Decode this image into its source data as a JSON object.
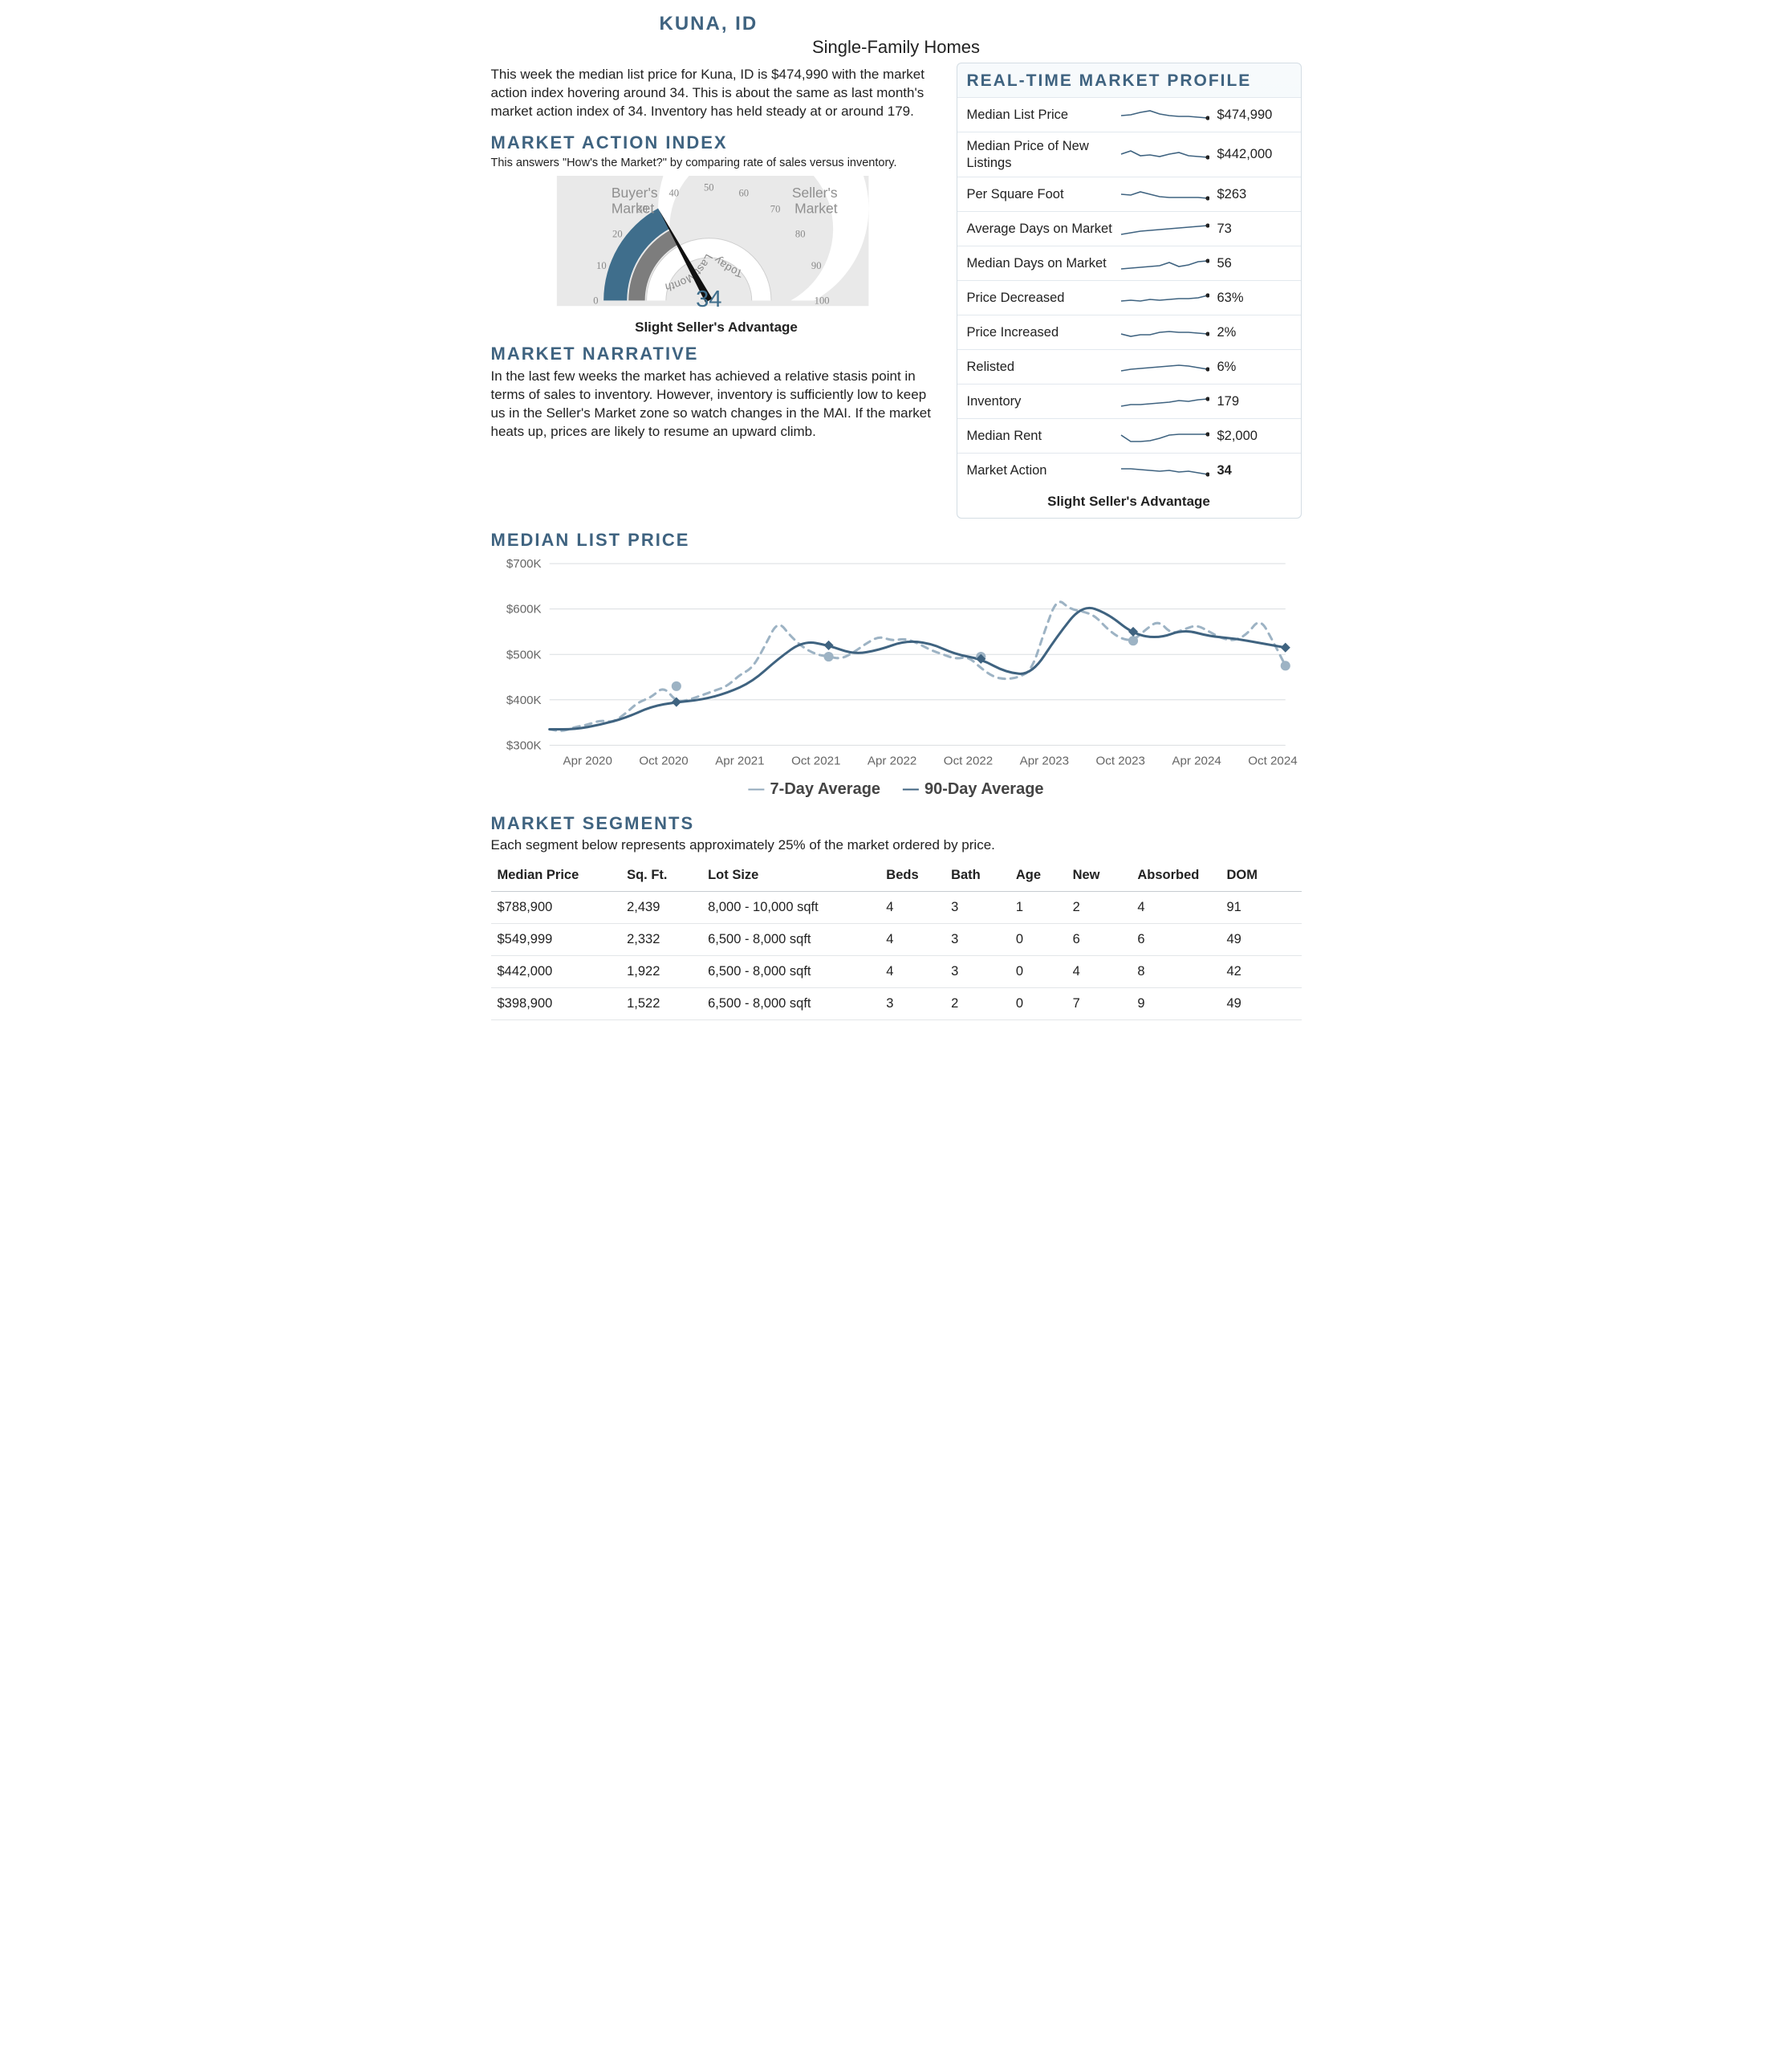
{
  "colors": {
    "heading": "#3f6380",
    "accent_blue": "#4a7a9a",
    "gauge_fill": "#3f6e8c",
    "gauge_track": "#7d7d7d",
    "gauge_bg": "#e9e9e9",
    "needle": "#111111",
    "chart_dash": "#9db3c4",
    "chart_solid": "#3f6380",
    "marker_circle": "#9db3c4",
    "marker_diamond": "#3f6380",
    "grid": "#d9dde0",
    "axis_text": "#888888"
  },
  "header": {
    "city": "Kuna, ID",
    "subtitle": "Single-Family Homes"
  },
  "intro": "This week the median list price for Kuna, ID is $474,990 with the market action index hovering around 34. This is about the same as last month's market action index of 34. Inventory has held steady at or around 179.",
  "mai": {
    "heading": "Market Action Index",
    "caption": "This answers \"How's the Market?\" by comparing rate of sales versus inventory.",
    "left_label": "Buyer's Market",
    "right_label": "Seller's Market",
    "scale_labels": [
      "0",
      "10",
      "20",
      "30",
      "40",
      "50",
      "60",
      "70",
      "80",
      "90",
      "100"
    ],
    "arc_today_label": "Today",
    "arc_last_label": "Last Month",
    "value": 34,
    "value_display": "34",
    "summary": "Slight Seller's Advantage"
  },
  "narrative": {
    "heading": "Market Narrative",
    "body": "In the last few weeks the market has achieved a relative stasis point in terms of sales to inventory. However, inventory is sufficiently low to keep us in the Seller's Market zone so watch changes in the MAI. If the market heats up, prices are likely to resume an upward climb."
  },
  "profile": {
    "title": "Real-Time Market Profile",
    "rows": [
      {
        "label": "Median List Price",
        "value": "$474,990",
        "spark": [
          12,
          11,
          8,
          6,
          10,
          12,
          13,
          13,
          14,
          15
        ]
      },
      {
        "label": "Median Price of New Listings",
        "value": "$442,000",
        "spark": [
          10,
          6,
          12,
          11,
          13,
          10,
          8,
          12,
          13,
          14
        ]
      },
      {
        "label": "Per Square Foot",
        "value": "$263",
        "spark": [
          11,
          12,
          8,
          11,
          14,
          15,
          15,
          15,
          15,
          16
        ]
      },
      {
        "label": "Average Days on Market",
        "value": "73",
        "spark": [
          18,
          16,
          14,
          13,
          12,
          11,
          10,
          9,
          8,
          7
        ]
      },
      {
        "label": "Median Days on Market",
        "value": "56",
        "spark": [
          18,
          17,
          16,
          15,
          14,
          10,
          15,
          13,
          9,
          8
        ]
      },
      {
        "label": "Price Decreased",
        "value": "63%",
        "spark": [
          15,
          14,
          15,
          13,
          14,
          13,
          12,
          12,
          11,
          8
        ]
      },
      {
        "label": "Price Increased",
        "value": "2%",
        "spark": [
          13,
          16,
          14,
          14,
          11,
          10,
          11,
          11,
          12,
          13
        ]
      },
      {
        "label": "Relisted",
        "value": "6%",
        "spark": [
          16,
          14,
          13,
          12,
          11,
          10,
          9,
          10,
          12,
          14
        ]
      },
      {
        "label": "Inventory",
        "value": "179",
        "spark": [
          17,
          15,
          15,
          14,
          13,
          12,
          10,
          11,
          9,
          8
        ]
      },
      {
        "label": "Median Rent",
        "value": "$2,000",
        "spark": [
          10,
          18,
          18,
          17,
          14,
          10,
          9,
          9,
          9,
          9
        ]
      },
      {
        "label": "Market Action",
        "value": "34",
        "bold": true,
        "spark": [
          9,
          9,
          10,
          11,
          12,
          11,
          13,
          12,
          14,
          16
        ]
      }
    ],
    "foot": "Slight Seller's Advantage"
  },
  "median_price": {
    "heading": "Median List Price",
    "y": {
      "ticks": [
        300,
        400,
        500,
        600,
        700
      ],
      "labels": [
        "$300K",
        "$400K",
        "$500K",
        "$600K",
        "$700K"
      ],
      "min": 300,
      "max": 700
    },
    "x": {
      "min": 0,
      "max": 58,
      "ticks": [
        3,
        9,
        15,
        21,
        27,
        33,
        39,
        45,
        51,
        57
      ],
      "tick_labels": [
        "Apr 2020",
        "Oct 2020",
        "Apr 2021",
        "Oct 2021",
        "Apr 2022",
        "Oct 2022",
        "Apr 2023",
        "Oct 2023",
        "Apr 2024",
        "Oct 2024"
      ]
    },
    "series_solid_label": "90-Day Average",
    "series_dash_label": "7-Day Average",
    "solid": [
      [
        0,
        335
      ],
      [
        2,
        335
      ],
      [
        4,
        345
      ],
      [
        6,
        360
      ],
      [
        8,
        385
      ],
      [
        10,
        395
      ],
      [
        12,
        400
      ],
      [
        14,
        415
      ],
      [
        16,
        440
      ],
      [
        18,
        490
      ],
      [
        20,
        530
      ],
      [
        22,
        520
      ],
      [
        24,
        500
      ],
      [
        26,
        510
      ],
      [
        28,
        530
      ],
      [
        30,
        525
      ],
      [
        32,
        500
      ],
      [
        34,
        490
      ],
      [
        36,
        460
      ],
      [
        38,
        455
      ],
      [
        40,
        540
      ],
      [
        42,
        610
      ],
      [
        44,
        590
      ],
      [
        46,
        545
      ],
      [
        48,
        535
      ],
      [
        50,
        555
      ],
      [
        52,
        540
      ],
      [
        54,
        535
      ],
      [
        56,
        525
      ],
      [
        58,
        515
      ]
    ],
    "dash": [
      [
        0,
        335
      ],
      [
        1,
        330
      ],
      [
        2,
        340
      ],
      [
        3,
        345
      ],
      [
        4,
        355
      ],
      [
        5,
        350
      ],
      [
        6,
        370
      ],
      [
        7,
        395
      ],
      [
        8,
        405
      ],
      [
        9,
        430
      ],
      [
        10,
        395
      ],
      [
        11,
        400
      ],
      [
        12,
        410
      ],
      [
        13,
        420
      ],
      [
        14,
        430
      ],
      [
        15,
        455
      ],
      [
        16,
        470
      ],
      [
        17,
        520
      ],
      [
        18,
        575
      ],
      [
        19,
        540
      ],
      [
        20,
        515
      ],
      [
        21,
        500
      ],
      [
        22,
        495
      ],
      [
        23,
        490
      ],
      [
        24,
        505
      ],
      [
        25,
        525
      ],
      [
        26,
        540
      ],
      [
        27,
        530
      ],
      [
        28,
        535
      ],
      [
        29,
        525
      ],
      [
        30,
        510
      ],
      [
        31,
        500
      ],
      [
        32,
        490
      ],
      [
        33,
        495
      ],
      [
        34,
        470
      ],
      [
        35,
        450
      ],
      [
        36,
        445
      ],
      [
        37,
        450
      ],
      [
        38,
        465
      ],
      [
        39,
        550
      ],
      [
        40,
        625
      ],
      [
        41,
        600
      ],
      [
        42,
        595
      ],
      [
        43,
        585
      ],
      [
        44,
        555
      ],
      [
        45,
        535
      ],
      [
        46,
        530
      ],
      [
        47,
        555
      ],
      [
        48,
        575
      ],
      [
        49,
        545
      ],
      [
        50,
        555
      ],
      [
        51,
        565
      ],
      [
        52,
        550
      ],
      [
        53,
        535
      ],
      [
        54,
        530
      ],
      [
        55,
        545
      ],
      [
        56,
        580
      ],
      [
        57,
        530
      ],
      [
        58,
        475
      ]
    ],
    "markers_circle": [
      [
        10,
        430
      ],
      [
        22,
        495
      ],
      [
        34,
        495
      ],
      [
        46,
        530
      ],
      [
        58,
        475
      ]
    ],
    "markers_diamond": [
      [
        10,
        395
      ],
      [
        22,
        520
      ],
      [
        34,
        490
      ],
      [
        46,
        550
      ],
      [
        58,
        515
      ]
    ]
  },
  "segments": {
    "heading": "Market Segments",
    "caption": "Each segment below represents approximately 25% of the market ordered by price.",
    "columns": [
      "Median Price",
      "Sq. Ft.",
      "Lot Size",
      "Beds",
      "Bath",
      "Age",
      "New",
      "Absorbed",
      "DOM"
    ],
    "col_widths_pct": [
      16,
      10,
      22,
      8,
      8,
      7,
      8,
      11,
      10
    ],
    "rows": [
      [
        "$788,900",
        "2,439",
        "8,000 - 10,000 sqft",
        "4",
        "3",
        "1",
        "2",
        "4",
        "91"
      ],
      [
        "$549,999",
        "2,332",
        "6,500 - 8,000 sqft",
        "4",
        "3",
        "0",
        "6",
        "6",
        "49"
      ],
      [
        "$442,000",
        "1,922",
        "6,500 - 8,000 sqft",
        "4",
        "3",
        "0",
        "4",
        "8",
        "42"
      ],
      [
        "$398,900",
        "1,522",
        "6,500 - 8,000 sqft",
        "3",
        "2",
        "0",
        "7",
        "9",
        "49"
      ]
    ]
  }
}
